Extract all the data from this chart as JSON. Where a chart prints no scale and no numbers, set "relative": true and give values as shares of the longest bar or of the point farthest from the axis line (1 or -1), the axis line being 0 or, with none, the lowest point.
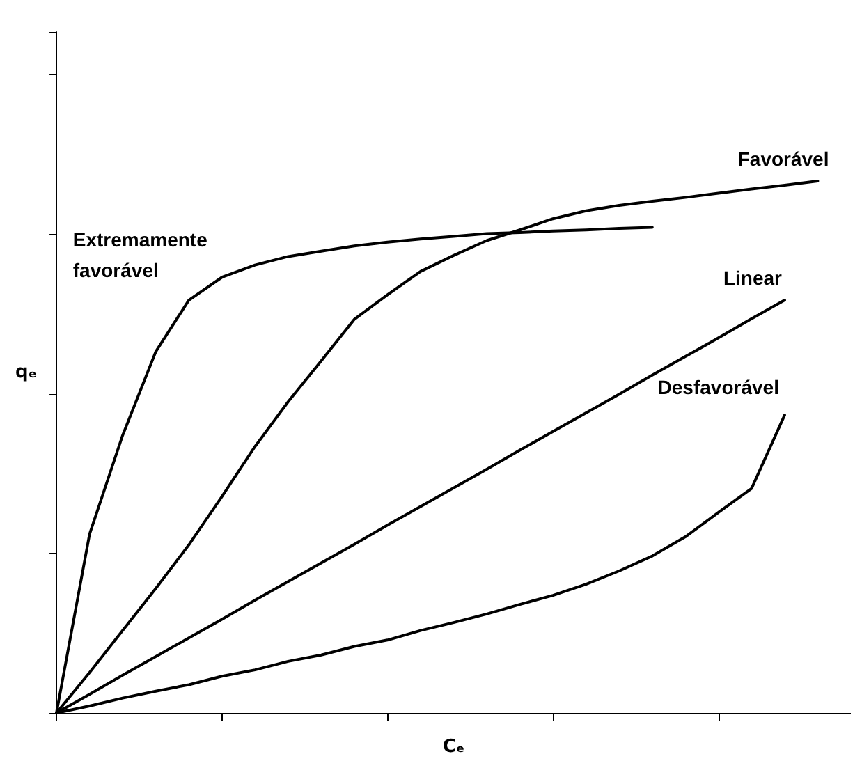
{
  "chart_data": {
    "type": "line",
    "relative": true,
    "xlabel": "Cₑ",
    "ylabel": "qₑ",
    "tick_labels": false,
    "categories": [
      null,
      null,
      null,
      null,
      null,
      null,
      null,
      null,
      null,
      null,
      null,
      null,
      null,
      null,
      null,
      null,
      null,
      null,
      null,
      null,
      null,
      null,
      null,
      null,
      null
    ],
    "series": [
      {
        "name": "Extremamente favorável",
        "color": "#000000",
        "values": [
          0,
          0.336,
          0.522,
          0.679,
          0.776,
          0.819,
          0.842,
          0.858,
          0.868,
          0.878,
          0.885,
          0.891,
          0.896,
          0.901,
          0.903,
          0.906,
          0.908,
          0.911,
          0.913,
          null,
          null,
          null,
          null,
          null,
          null
        ]
      },
      {
        "name": "Favorável",
        "color": "#000000",
        "values": [
          0,
          0.076,
          0.155,
          0.234,
          0.316,
          0.407,
          0.501,
          0.585,
          0.662,
          0.74,
          0.786,
          0.83,
          0.86,
          0.888,
          0.908,
          0.929,
          0.944,
          0.954,
          0.962,
          0.969,
          0.977,
          0.985,
          0.992,
          1,
          null
        ]
      },
      {
        "name": "Linear",
        "color": "#000000",
        "values": [
          0,
          0.035,
          0.071,
          0.106,
          0.141,
          0.176,
          0.212,
          0.247,
          0.282,
          0.317,
          0.353,
          0.388,
          0.423,
          0.458,
          0.494,
          0.529,
          0.564,
          0.599,
          0.635,
          0.67,
          0.705,
          0.741,
          0.776,
          null,
          null
        ]
      },
      {
        "name": "Desfavorável",
        "color": "#000000",
        "values": [
          0,
          0.013,
          0.028,
          0.041,
          0.053,
          0.069,
          0.081,
          0.097,
          0.109,
          0.125,
          0.137,
          0.155,
          0.17,
          0.186,
          0.204,
          0.221,
          0.242,
          0.267,
          0.295,
          0.331,
          0.377,
          0.422,
          0.56,
          null,
          null
        ]
      }
    ]
  }
}
